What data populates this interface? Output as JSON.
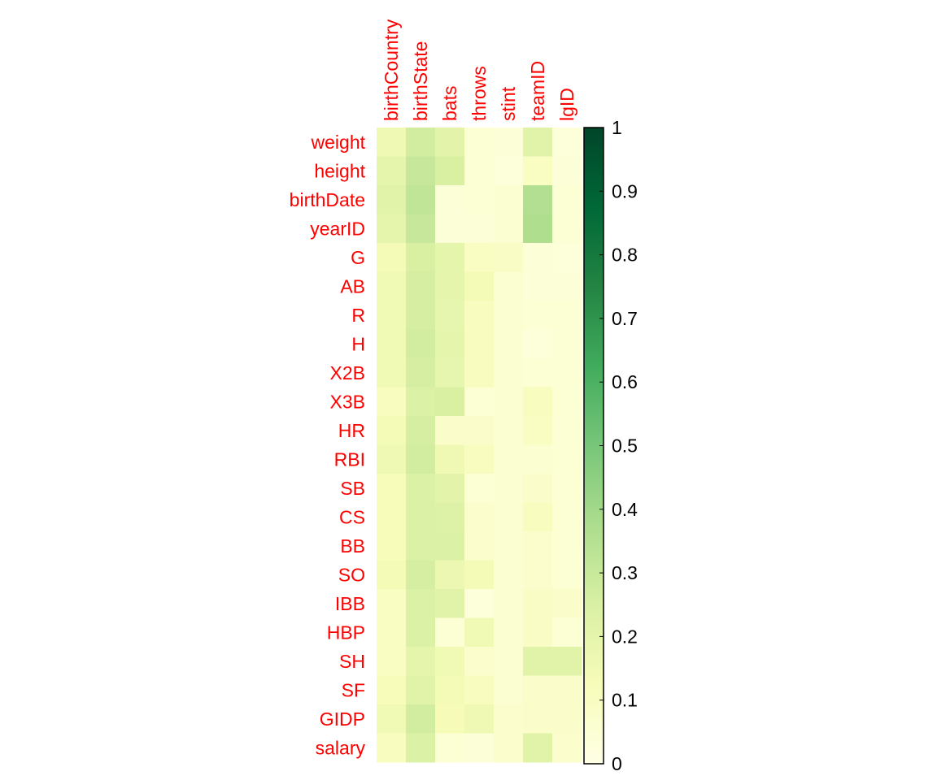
{
  "chart_data": {
    "type": "heatmap",
    "columns": [
      "birthCountry",
      "birthState",
      "bats",
      "throws",
      "stint",
      "teamID",
      "lgID"
    ],
    "rows": [
      "weight",
      "height",
      "birthDate",
      "yearID",
      "G",
      "AB",
      "R",
      "H",
      "X2B",
      "X3B",
      "HR",
      "RBI",
      "SB",
      "CS",
      "BB",
      "SO",
      "IBB",
      "HBP",
      "SH",
      "SF",
      "GIDP",
      "salary"
    ],
    "values": [
      [
        0.16,
        0.27,
        0.21,
        0.05,
        0.04,
        0.22,
        0.03
      ],
      [
        0.2,
        0.3,
        0.25,
        0.05,
        0.03,
        0.1,
        0.04
      ],
      [
        0.22,
        0.32,
        0.04,
        0.05,
        0.06,
        0.36,
        0.05
      ],
      [
        0.2,
        0.3,
        0.04,
        0.04,
        0.06,
        0.37,
        0.05
      ],
      [
        0.14,
        0.25,
        0.2,
        0.1,
        0.09,
        0.04,
        0.03
      ],
      [
        0.15,
        0.26,
        0.2,
        0.14,
        0.06,
        0.04,
        0.04
      ],
      [
        0.15,
        0.26,
        0.19,
        0.11,
        0.06,
        0.05,
        0.05
      ],
      [
        0.15,
        0.27,
        0.2,
        0.11,
        0.06,
        0.03,
        0.05
      ],
      [
        0.15,
        0.26,
        0.19,
        0.11,
        0.06,
        0.05,
        0.05
      ],
      [
        0.11,
        0.24,
        0.25,
        0.05,
        0.06,
        0.11,
        0.05
      ],
      [
        0.14,
        0.26,
        0.08,
        0.08,
        0.06,
        0.1,
        0.05
      ],
      [
        0.16,
        0.27,
        0.16,
        0.11,
        0.06,
        0.06,
        0.05
      ],
      [
        0.12,
        0.24,
        0.21,
        0.05,
        0.06,
        0.08,
        0.05
      ],
      [
        0.12,
        0.24,
        0.23,
        0.07,
        0.06,
        0.11,
        0.05
      ],
      [
        0.12,
        0.24,
        0.24,
        0.07,
        0.06,
        0.07,
        0.05
      ],
      [
        0.14,
        0.26,
        0.17,
        0.14,
        0.06,
        0.07,
        0.05
      ],
      [
        0.1,
        0.24,
        0.22,
        0.03,
        0.06,
        0.09,
        0.08
      ],
      [
        0.1,
        0.24,
        0.05,
        0.15,
        0.06,
        0.09,
        0.05
      ],
      [
        0.1,
        0.2,
        0.15,
        0.07,
        0.06,
        0.22,
        0.22
      ],
      [
        0.12,
        0.22,
        0.14,
        0.11,
        0.06,
        0.08,
        0.08
      ],
      [
        0.15,
        0.27,
        0.13,
        0.16,
        0.07,
        0.08,
        0.08
      ],
      [
        0.11,
        0.24,
        0.05,
        0.04,
        0.07,
        0.22,
        0.07
      ]
    ],
    "scale": {
      "min": 0,
      "max": 1,
      "ticks": [
        "0",
        "0.1",
        "0.2",
        "0.3",
        "0.4",
        "0.5",
        "0.6",
        "0.7",
        "0.8",
        "0.9",
        "1"
      ],
      "palette": "YlGn",
      "colors": [
        "#ffffe5",
        "#f7fcb9",
        "#d9f0a3",
        "#addd8e",
        "#78c679",
        "#41ab5d",
        "#238443",
        "#006837",
        "#004529"
      ]
    },
    "label_color": "#ff0000"
  }
}
